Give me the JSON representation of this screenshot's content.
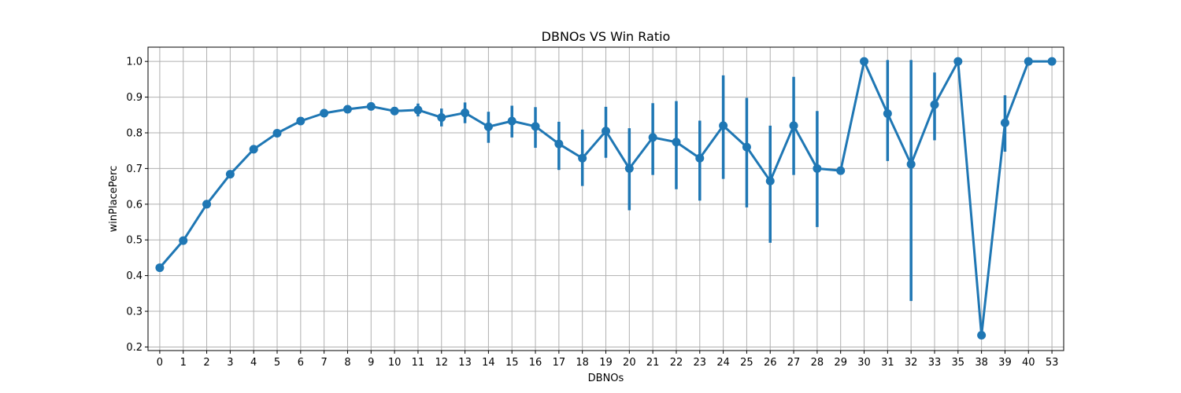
{
  "chart_data": {
    "type": "line",
    "title": "DBNOs VS Win Ratio",
    "xlabel": "DBNOs",
    "ylabel": "winPlacePerc",
    "categories": [
      "0",
      "1",
      "2",
      "3",
      "4",
      "5",
      "6",
      "7",
      "8",
      "9",
      "10",
      "11",
      "12",
      "13",
      "14",
      "15",
      "16",
      "17",
      "18",
      "19",
      "20",
      "21",
      "22",
      "23",
      "24",
      "25",
      "26",
      "27",
      "28",
      "29",
      "30",
      "31",
      "32",
      "33",
      "35",
      "38",
      "39",
      "40",
      "53"
    ],
    "values": [
      0.422,
      0.498,
      0.6,
      0.684,
      0.754,
      0.799,
      0.833,
      0.855,
      0.866,
      0.874,
      0.861,
      0.864,
      0.843,
      0.856,
      0.817,
      0.833,
      0.818,
      0.769,
      0.729,
      0.805,
      0.7,
      0.787,
      0.774,
      0.729,
      0.82,
      0.76,
      0.665,
      0.82,
      0.7,
      0.694,
      1.0,
      0.854,
      0.712,
      0.879,
      1.0,
      0.233,
      0.828,
      1.0,
      1.0
    ],
    "ci_low": [
      0.416,
      0.494,
      0.597,
      0.681,
      0.751,
      0.796,
      0.829,
      0.851,
      0.86,
      0.866,
      0.851,
      0.846,
      0.818,
      0.827,
      0.772,
      0.787,
      0.758,
      0.696,
      0.651,
      0.73,
      0.583,
      0.682,
      0.642,
      0.61,
      0.671,
      0.591,
      0.492,
      0.682,
      0.536,
      0.694,
      1.0,
      0.721,
      0.329,
      0.779,
      1.0,
      0.233,
      0.747,
      1.0,
      1.0
    ],
    "ci_high": [
      0.428,
      0.502,
      0.603,
      0.687,
      0.757,
      0.802,
      0.837,
      0.859,
      0.872,
      0.882,
      0.871,
      0.882,
      0.868,
      0.885,
      0.859,
      0.876,
      0.872,
      0.831,
      0.809,
      0.873,
      0.813,
      0.883,
      0.889,
      0.834,
      0.961,
      0.898,
      0.82,
      0.957,
      0.861,
      0.694,
      1.0,
      1.004,
      1.004,
      0.969,
      1.0,
      0.233,
      0.905,
      1.0,
      1.0
    ],
    "ylim": [
      0.19,
      1.04
    ],
    "yticks": [
      "0.2",
      "0.3",
      "0.4",
      "0.5",
      "0.6",
      "0.7",
      "0.8",
      "0.9",
      "1.0"
    ],
    "grid": true,
    "color": "#1f77b4"
  }
}
